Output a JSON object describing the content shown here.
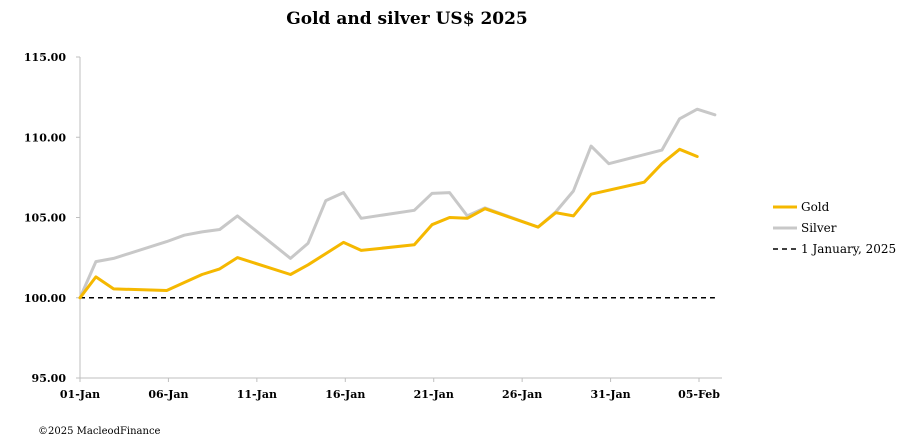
{
  "chart_data": {
    "type": "line",
    "title": "Gold and silver  US$ 2025",
    "xlabel": "",
    "ylabel": "",
    "ylim": [
      95,
      115
    ],
    "yticks": [
      "95.00",
      "100.00",
      "105.00",
      "110.00",
      "115.00"
    ],
    "xticks": [
      {
        "day": 0,
        "label": "01-Jan"
      },
      {
        "day": 5,
        "label": "06-Jan"
      },
      {
        "day": 10,
        "label": "11-Jan"
      },
      {
        "day": 15,
        "label": "16-Jan"
      },
      {
        "day": 20,
        "label": "21-Jan"
      },
      {
        "day": 25,
        "label": "26-Jan"
      },
      {
        "day": 30,
        "label": "31-Jan"
      },
      {
        "day": 35,
        "label": "05-Feb"
      }
    ],
    "xlim": [
      0,
      36.3
    ],
    "series": [
      {
        "name": "Gold",
        "color": "#F5B800",
        "style": "solid",
        "x": [
          0,
          0.9,
          1.9,
          4.9,
          5.9,
          6.9,
          7.9,
          8.9,
          11.9,
          12.9,
          13.9,
          14.9,
          15.9,
          18.9,
          19.9,
          20.9,
          21.9,
          22.9,
          25.9,
          26.9,
          27.9,
          28.9,
          31.9,
          32.9,
          33.9,
          34.9,
          35.9
        ],
        "values": [
          100.0,
          101.3,
          100.55,
          100.45,
          100.95,
          101.45,
          101.8,
          102.5,
          101.45,
          102.05,
          102.75,
          103.45,
          102.95,
          103.3,
          104.55,
          105.0,
          104.95,
          105.55,
          104.4,
          105.3,
          105.1,
          106.45,
          107.2,
          108.35,
          109.25,
          108.8,
          null
        ]
      },
      {
        "name": "Silver",
        "color": "#C8C8C8",
        "style": "solid",
        "x": [
          0,
          0.9,
          1.9,
          4.9,
          5.9,
          6.9,
          7.9,
          8.9,
          11.9,
          12.9,
          13.9,
          14.9,
          15.9,
          18.9,
          19.9,
          20.9,
          21.9,
          22.9,
          25.9,
          26.9,
          27.9,
          28.9,
          29.9,
          32.9,
          33.9,
          34.9,
          35.9
        ],
        "values": [
          100.0,
          102.25,
          102.45,
          103.5,
          103.9,
          104.1,
          104.25,
          105.1,
          102.45,
          103.4,
          106.05,
          106.55,
          104.95,
          105.45,
          106.5,
          106.55,
          105.1,
          105.6,
          104.4,
          105.35,
          106.65,
          109.45,
          108.35,
          109.2,
          111.15,
          111.75,
          111.4
        ]
      },
      {
        "name": "1 January, 2025",
        "color": "#000000",
        "style": "dashed",
        "x": [
          0,
          35.9
        ],
        "values": [
          100.0,
          100.0
        ]
      }
    ],
    "legend": {
      "placement": "right",
      "entries": [
        "Gold",
        "Silver",
        "1 January, 2025"
      ]
    },
    "grid": false
  },
  "footer": {
    "copyright": "©2025 MacleodFinance"
  }
}
